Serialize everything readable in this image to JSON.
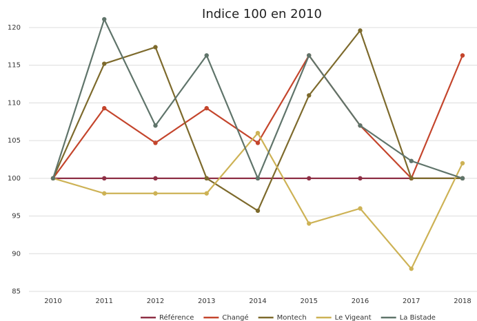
{
  "chart_data": {
    "type": "line",
    "title": "Indice 100 en 2010",
    "categories": [
      "2010",
      "2011",
      "2012",
      "2013",
      "2014",
      "2015",
      "2016",
      "2017",
      "2018"
    ],
    "series": [
      {
        "name": "Référence",
        "color": "#8e2f45",
        "values": [
          100,
          100,
          100,
          100,
          100,
          100,
          100,
          100,
          100
        ]
      },
      {
        "name": "Changé",
        "color": "#c4452c",
        "values": [
          100,
          109.3,
          104.7,
          109.3,
          104.7,
          116.3,
          107,
          100,
          116.3
        ]
      },
      {
        "name": "Montech",
        "color": "#7d6a2c",
        "values": [
          100,
          115.2,
          117.4,
          100,
          95.7,
          111,
          119.6,
          100,
          100
        ]
      },
      {
        "name": "Le Vigeant",
        "color": "#cdb255",
        "values": [
          100,
          98,
          98,
          98,
          106,
          94,
          96,
          88,
          102
        ]
      },
      {
        "name": "La Bistade",
        "color": "#5f746a",
        "values": [
          100,
          121.1,
          107,
          116.3,
          100,
          116.3,
          107,
          102.3,
          100
        ]
      }
    ],
    "ylim": [
      85,
      120
    ],
    "yticks": [
      85,
      90,
      95,
      100,
      105,
      110,
      115,
      120
    ],
    "grid": true,
    "legend": "bottom"
  }
}
